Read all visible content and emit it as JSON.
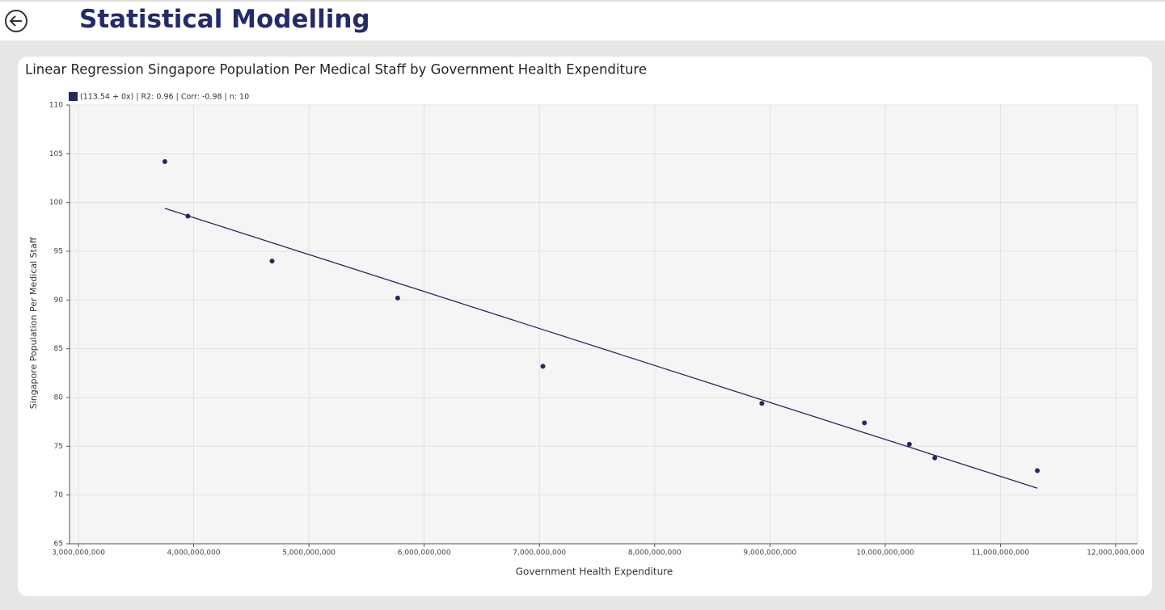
{
  "header": {
    "title": "Statistical Modelling"
  },
  "chart_data": {
    "type": "scatter",
    "title": "Linear Regression Singapore Population Per Medical Staff by Government Health Expenditure",
    "legend_label": "(113.54 + 0x) | R2: 0.96 | Corr: -0.98 | n: 10",
    "x_label": "Government Health Expenditure",
    "y_label": "Singapore Population Per Medical Staff",
    "color": "#252a5c",
    "x": [
      3750000000,
      3950000000,
      4680000000,
      5770000000,
      7030000000,
      8930000000,
      9820000000,
      10210000000,
      10430000000,
      11320000000
    ],
    "values": [
      104.2,
      98.6,
      94.0,
      90.2,
      83.2,
      79.4,
      77.4,
      75.2,
      73.8,
      72.5
    ],
    "trend_line": {
      "x": [
        3750000000,
        11320000000
      ],
      "values": [
        99.4,
        70.7
      ]
    },
    "xlim": [
      3000000000,
      12000000000
    ],
    "xticks": [
      {
        "value": 3000000000,
        "label": "3,000,000,000"
      },
      {
        "value": 4000000000,
        "label": "4,000,000,000"
      },
      {
        "value": 5000000000,
        "label": "5,000,000,000"
      },
      {
        "value": 6000000000,
        "label": "6,000,000,000"
      },
      {
        "value": 7000000000,
        "label": "7,000,000,000"
      },
      {
        "value": 8000000000,
        "label": "8,000,000,000"
      },
      {
        "value": 9000000000,
        "label": "9,000,000,000"
      },
      {
        "value": 10000000000,
        "label": "10,000,000,000"
      },
      {
        "value": 11000000000,
        "label": "11,000,000,000"
      },
      {
        "value": 12000000000,
        "label": "12,000,000,000"
      }
    ],
    "ylim": [
      65,
      110
    ],
    "yticks": [
      65,
      70,
      75,
      80,
      85,
      90,
      95,
      100,
      105,
      110
    ],
    "grid": true
  }
}
